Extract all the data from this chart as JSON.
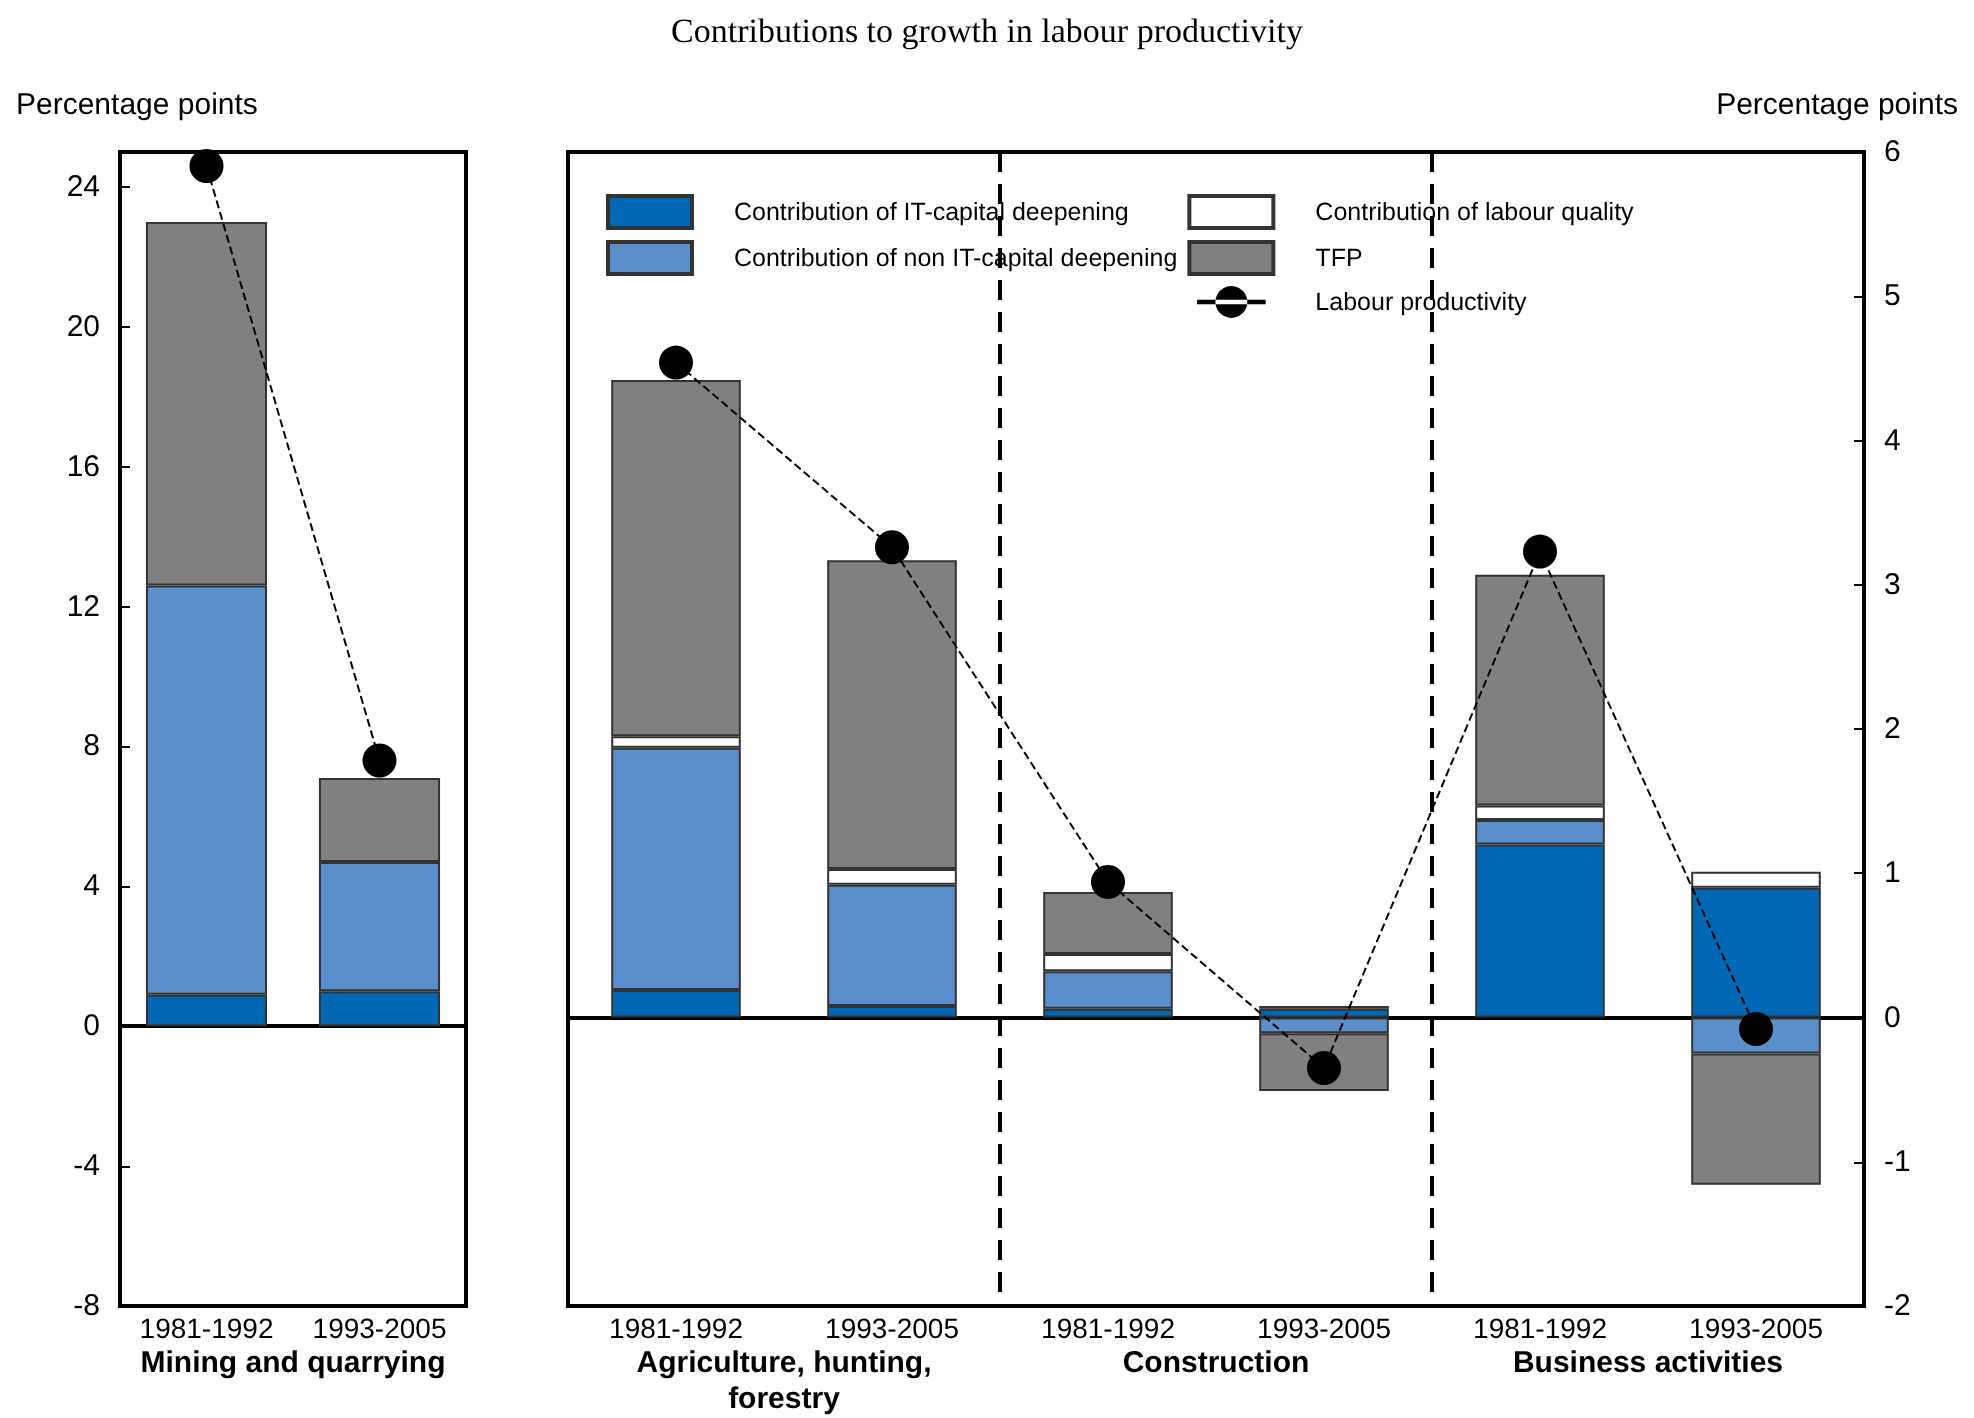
{
  "chart_data": [
    {
      "type": "bar",
      "ylabel": "Percentage points",
      "xlabel": "Mining and quarrying",
      "categories": [
        "1981-1992",
        "1993-2005"
      ],
      "stacked": true,
      "series": [
        {
          "color": "#0068b4",
          "values": [
            0.9,
            1.0
          ]
        },
        {
          "color": "#5b8fcb",
          "values": [
            11.7,
            3.7
          ]
        },
        {
          "color": "#ffffff",
          "values": [
            null,
            null
          ]
        },
        {
          "color": "#808080",
          "values": [
            10.4,
            2.4
          ]
        },
        {
          "type": "line",
          "color": "#000000",
          "values": [
            24.6,
            7.6
          ],
          "marker": "circle",
          "line_style": "dashed"
        }
      ],
      "ylim": [
        -8,
        25
      ],
      "yticks": [
        -8,
        -4,
        0,
        4,
        8,
        12,
        16,
        20,
        24
      ]
    },
    {
      "type": "bar",
      "title": "Contributions to growth in labour productivity",
      "y2label": "Percentage points",
      "annotations": [
        "Agriculture, hunting, forestry",
        "Construction",
        "Business activities"
      ],
      "categories": [
        "1981-1992",
        "1993-2005",
        "1981-1992",
        "1993-2005",
        "1981-1992",
        "1993-2005"
      ],
      "stacked": true,
      "series": [
        {
          "name": "Contribution of IT-capital deepening",
          "color": "#0068b4",
          "axis": "y2",
          "values": [
            0.19,
            0.08,
            0.06,
            0.06,
            1.2,
            0.9
          ]
        },
        {
          "name": "Contribution of non IT-capital deepening",
          "color": "#5b8fcb",
          "axis": "y2",
          "values": [
            1.68,
            0.84,
            0.26,
            -0.11,
            0.17,
            -0.25
          ]
        },
        {
          "name": "Contribution of labour quality",
          "color": "#ffffff",
          "axis": "y2",
          "values": [
            0.08,
            0.11,
            0.12,
            0.02,
            0.1,
            0.11
          ]
        },
        {
          "name": "TFP",
          "color": "#808080",
          "axis": "y2",
          "values": [
            2.47,
            2.14,
            0.43,
            -0.4,
            1.6,
            -0.91
          ]
        },
        {
          "name": "Labour productivity",
          "type": "line",
          "color": "#000000",
          "axis": "y2",
          "values": [
            4.54,
            3.26,
            0.94,
            -0.35,
            3.23,
            -0.08
          ],
          "marker": "circle",
          "line_style": "dashed"
        }
      ],
      "y2lim": [
        -2,
        6
      ],
      "y2ticks": [
        -2,
        -1,
        0,
        1,
        2,
        3,
        4,
        5,
        6
      ],
      "legend": "top left"
    }
  ]
}
